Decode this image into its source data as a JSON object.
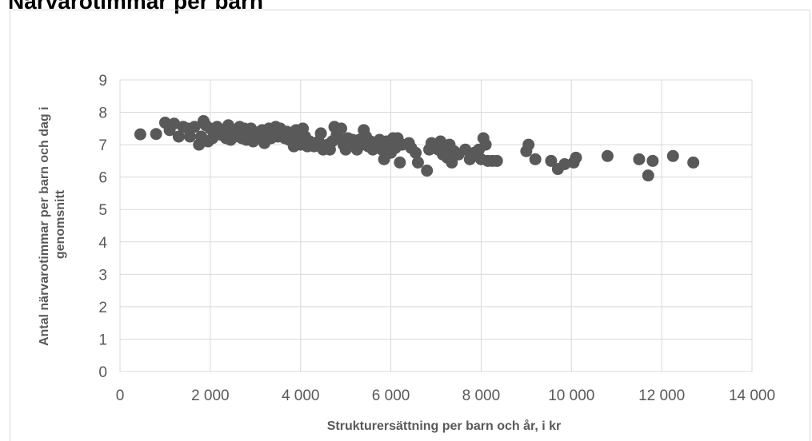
{
  "chart_data": {
    "type": "scatter",
    "title": "Närvarotimmar per barn",
    "xlabel": "Strukturersättning per barn och år, i kr",
    "ylabel_lines": [
      "Antal närvarotimmar per barn och dag i",
      "genomsnitt"
    ],
    "xlim": [
      0,
      14000
    ],
    "ylim": [
      0,
      9
    ],
    "x_ticks": [
      0,
      2000,
      4000,
      6000,
      8000,
      10000,
      12000,
      14000
    ],
    "x_tick_labels": [
      "0",
      "2 000",
      "4 000",
      "6 000",
      "8 000",
      "10 000",
      "12 000",
      "14 000"
    ],
    "y_ticks": [
      0,
      1,
      2,
      3,
      4,
      5,
      6,
      7,
      8,
      9
    ],
    "y_tick_labels": [
      "0",
      "1",
      "2",
      "3",
      "4",
      "5",
      "6",
      "7",
      "8",
      "9"
    ],
    "grid": true,
    "legend": "none",
    "marker_color": "#595959",
    "points": [
      [
        450,
        7.32
      ],
      [
        800,
        7.33
      ],
      [
        1000,
        7.68
      ],
      [
        1100,
        7.45
      ],
      [
        1200,
        7.65
      ],
      [
        1300,
        7.25
      ],
      [
        1400,
        7.55
      ],
      [
        1500,
        7.5
      ],
      [
        1550,
        7.25
      ],
      [
        1650,
        7.55
      ],
      [
        1750,
        7.0
      ],
      [
        1800,
        7.25
      ],
      [
        1850,
        7.73
      ],
      [
        1900,
        7.6
      ],
      [
        1950,
        7.1
      ],
      [
        2000,
        7.5
      ],
      [
        2050,
        7.2
      ],
      [
        2100,
        7.35
      ],
      [
        2150,
        7.55
      ],
      [
        2200,
        7.45
      ],
      [
        2250,
        7.3
      ],
      [
        2300,
        7.4
      ],
      [
        2350,
        7.2
      ],
      [
        2400,
        7.6
      ],
      [
        2450,
        7.15
      ],
      [
        2500,
        7.45
      ],
      [
        2550,
        7.25
      ],
      [
        2600,
        7.35
      ],
      [
        2650,
        7.55
      ],
      [
        2700,
        7.2
      ],
      [
        2750,
        7.5
      ],
      [
        2800,
        7.15
      ],
      [
        2850,
        7.3
      ],
      [
        2900,
        7.5
      ],
      [
        2950,
        7.1
      ],
      [
        3000,
        7.3
      ],
      [
        3050,
        7.2
      ],
      [
        3100,
        7.4
      ],
      [
        3150,
        7.45
      ],
      [
        3200,
        7.05
      ],
      [
        3250,
        7.3
      ],
      [
        3300,
        7.5
      ],
      [
        3350,
        7.2
      ],
      [
        3400,
        7.35
      ],
      [
        3450,
        7.55
      ],
      [
        3500,
        7.25
      ],
      [
        3550,
        7.5
      ],
      [
        3600,
        7.35
      ],
      [
        3650,
        7.2
      ],
      [
        3700,
        7.4
      ],
      [
        3750,
        7.15
      ],
      [
        3800,
        7.3
      ],
      [
        3850,
        6.95
      ],
      [
        3900,
        7.45
      ],
      [
        3950,
        7.2
      ],
      [
        4000,
        7.0
      ],
      [
        4050,
        7.5
      ],
      [
        4100,
        7.25
      ],
      [
        4150,
        6.95
      ],
      [
        4200,
        7.1
      ],
      [
        4300,
        6.95
      ],
      [
        4400,
        7.1
      ],
      [
        4450,
        7.35
      ],
      [
        4500,
        6.85
      ],
      [
        4600,
        7.0
      ],
      [
        4650,
        6.85
      ],
      [
        4700,
        7.1
      ],
      [
        4750,
        7.55
      ],
      [
        4800,
        7.3
      ],
      [
        4850,
        7.2
      ],
      [
        4900,
        7.5
      ],
      [
        4950,
        7.0
      ],
      [
        5000,
        6.85
      ],
      [
        5050,
        7.2
      ],
      [
        5100,
        7.05
      ],
      [
        5150,
        7.15
      ],
      [
        5200,
        7.0
      ],
      [
        5250,
        6.85
      ],
      [
        5300,
        7.15
      ],
      [
        5350,
        7.0
      ],
      [
        5400,
        7.45
      ],
      [
        5450,
        7.25
      ],
      [
        5500,
        6.95
      ],
      [
        5550,
        7.1
      ],
      [
        5600,
        6.85
      ],
      [
        5650,
        7.05
      ],
      [
        5700,
        6.95
      ],
      [
        5750,
        7.15
      ],
      [
        5800,
        6.85
      ],
      [
        5850,
        6.55
      ],
      [
        5900,
        7.1
      ],
      [
        5950,
        6.95
      ],
      [
        6000,
        6.75
      ],
      [
        6050,
        7.2
      ],
      [
        6100,
        6.9
      ],
      [
        6150,
        7.2
      ],
      [
        6200,
        6.45
      ],
      [
        6250,
        7.0
      ],
      [
        6400,
        7.05
      ],
      [
        6450,
        6.9
      ],
      [
        6550,
        6.75
      ],
      [
        6600,
        6.45
      ],
      [
        6800,
        6.2
      ],
      [
        6850,
        6.85
      ],
      [
        6900,
        7.05
      ],
      [
        6950,
        6.9
      ],
      [
        7050,
        6.85
      ],
      [
        7100,
        7.1
      ],
      [
        7150,
        6.7
      ],
      [
        7200,
        6.9
      ],
      [
        7250,
        6.6
      ],
      [
        7300,
        7.0
      ],
      [
        7350,
        6.45
      ],
      [
        7400,
        6.8
      ],
      [
        7500,
        6.7
      ],
      [
        7650,
        6.85
      ],
      [
        7750,
        6.55
      ],
      [
        7850,
        6.75
      ],
      [
        7950,
        6.85
      ],
      [
        8000,
        6.55
      ],
      [
        8050,
        7.2
      ],
      [
        8100,
        7.0
      ],
      [
        8150,
        6.5
      ],
      [
        8250,
        6.5
      ],
      [
        8350,
        6.5
      ],
      [
        9000,
        6.8
      ],
      [
        9050,
        7.0
      ],
      [
        9200,
        6.55
      ],
      [
        9550,
        6.5
      ],
      [
        9700,
        6.25
      ],
      [
        9850,
        6.4
      ],
      [
        10050,
        6.45
      ],
      [
        10100,
        6.6
      ],
      [
        10800,
        6.65
      ],
      [
        11500,
        6.55
      ],
      [
        11700,
        6.05
      ],
      [
        11800,
        6.5
      ],
      [
        12250,
        6.65
      ],
      [
        12700,
        6.45
      ]
    ]
  }
}
